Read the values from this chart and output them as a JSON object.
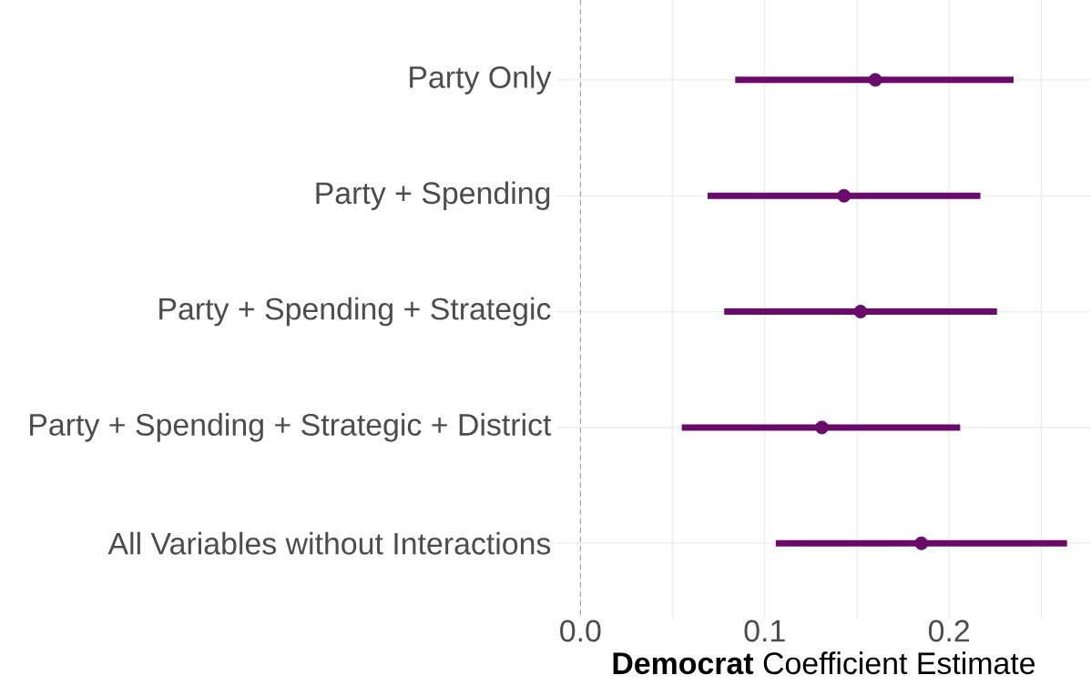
{
  "chart_data": {
    "type": "scatter",
    "orientation": "horizontal",
    "xlabel": "**Democrat** Coefficient Estimate",
    "categories": [
      "Party Only",
      "Party + Spending",
      "Party + Spending + Strategic",
      "Party + Spending + Strategic + District",
      "All Variables without Interactions"
    ],
    "values": [
      0.16,
      0.143,
      0.152,
      0.131,
      0.185
    ],
    "errors": [
      [
        0.084,
        0.235
      ],
      [
        0.069,
        0.217
      ],
      [
        0.078,
        0.226
      ],
      [
        0.055,
        0.206
      ],
      [
        0.106,
        0.264
      ]
    ],
    "color": "#6a0a6b",
    "marker": "circle",
    "grid": true,
    "xlim": [
      -0.013,
      0.277
    ],
    "xticks": [
      {
        "value": 0.0,
        "label": "0.0"
      },
      {
        "value": 0.05,
        "label": null
      },
      {
        "value": 0.1,
        "label": "0.1"
      },
      {
        "value": 0.15,
        "label": null
      },
      {
        "value": 0.2,
        "label": "0.2"
      },
      {
        "value": 0.25,
        "label": null
      }
    ],
    "ref_lines": [
      {
        "axis": "x",
        "value": 0,
        "color": "#999999",
        "line_style": "dashed"
      }
    ]
  }
}
